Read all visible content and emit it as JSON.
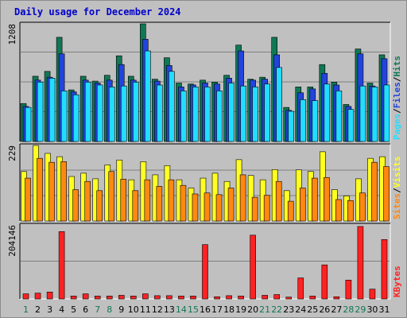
{
  "title": "Daily usage for December 2024",
  "colors": {
    "background": "#c0c0c0",
    "panel": "#c0c0c0",
    "hits": "#117755",
    "files": "#2244dd",
    "pages": "#22ddff",
    "visits": "#ffff22",
    "sites": "#ff8811",
    "kbytes": "#ff2222",
    "weekday": "#117755",
    "weekend": "#117755",
    "title": "#0000cc"
  },
  "chart_data": [
    {
      "type": "bar",
      "panel": "hits-files-pages",
      "ymax_label": "1208",
      "ylim": [
        0,
        1208
      ],
      "categories": [
        "1",
        "2",
        "3",
        "4",
        "5",
        "6",
        "7",
        "8",
        "9",
        "10",
        "11",
        "12",
        "13",
        "14",
        "15",
        "16",
        "17",
        "18",
        "19",
        "20",
        "21",
        "22",
        "23",
        "24",
        "25",
        "26",
        "27",
        "28",
        "29",
        "30",
        "31"
      ],
      "series": [
        {
          "name": "Hits",
          "values": [
            390,
            670,
            720,
            1070,
            530,
            670,
            620,
            680,
            880,
            670,
            1208,
            640,
            860,
            600,
            590,
            630,
            610,
            680,
            990,
            640,
            660,
            1070,
            350,
            560,
            560,
            790,
            610,
            380,
            950,
            600,
            890
          ]
        },
        {
          "name": "Files",
          "values": [
            360,
            630,
            660,
            900,
            510,
            630,
            600,
            630,
            790,
            630,
            1050,
            620,
            780,
            560,
            580,
            600,
            590,
            650,
            930,
            630,
            640,
            890,
            320,
            500,
            540,
            700,
            580,
            360,
            900,
            570,
            850
          ]
        },
        {
          "name": "Pages",
          "values": [
            350,
            610,
            650,
            520,
            480,
            610,
            580,
            560,
            570,
            610,
            930,
            580,
            720,
            520,
            560,
            560,
            520,
            600,
            570,
            560,
            590,
            760,
            310,
            430,
            420,
            590,
            520,
            330,
            570,
            560,
            580
          ]
        }
      ],
      "legend": [
        "Pages",
        "/",
        "Files",
        "/",
        "Hits"
      ],
      "legend_position": "right-vertical"
    },
    {
      "type": "bar",
      "panel": "sites-visits",
      "ymax_label": "229",
      "ylim": [
        0,
        229
      ],
      "categories": [
        "1",
        "2",
        "3",
        "4",
        "5",
        "6",
        "7",
        "8",
        "9",
        "10",
        "11",
        "12",
        "13",
        "14",
        "15",
        "16",
        "17",
        "18",
        "19",
        "20",
        "21",
        "22",
        "23",
        "24",
        "25",
        "26",
        "27",
        "28",
        "29",
        "30",
        "31"
      ],
      "series": [
        {
          "name": "Visits",
          "values": [
            150,
            229,
            205,
            195,
            135,
            145,
            128,
            170,
            185,
            125,
            180,
            140,
            168,
            125,
            100,
            130,
            145,
            120,
            186,
            138,
            125,
            156,
            92,
            155,
            150,
            210,
            95,
            76,
            128,
            190,
            195
          ]
        },
        {
          "name": "Sites",
          "values": [
            130,
            190,
            178,
            180,
            95,
            120,
            92,
            150,
            127,
            92,
            125,
            105,
            125,
            108,
            82,
            85,
            80,
            100,
            140,
            72,
            78,
            120,
            60,
            100,
            130,
            132,
            65,
            62,
            85,
            178,
            165
          ]
        }
      ],
      "legend": [
        "Sites",
        "/",
        "Visits"
      ],
      "legend_position": "right-vertical"
    },
    {
      "type": "bar",
      "panel": "kbytes",
      "ymax_label": "204146",
      "ylim": [
        0,
        204146
      ],
      "categories": [
        "1",
        "2",
        "3",
        "4",
        "5",
        "6",
        "7",
        "8",
        "9",
        "10",
        "11",
        "12",
        "13",
        "14",
        "15",
        "16",
        "17",
        "18",
        "19",
        "20",
        "21",
        "22",
        "23",
        "24",
        "25",
        "26",
        "27",
        "28",
        "29",
        "30",
        "31"
      ],
      "series": [
        {
          "name": "KBytes",
          "values": [
            14000,
            16000,
            19000,
            186000,
            8000,
            14000,
            8000,
            8000,
            10000,
            8000,
            14000,
            9000,
            9000,
            8000,
            8000,
            150000,
            6000,
            9000,
            8000,
            176000,
            10000,
            12000,
            5000,
            58000,
            8000,
            94000,
            6000,
            52000,
            200000,
            27000,
            164000
          ]
        }
      ],
      "legend": [
        "KBytes"
      ],
      "legend_position": "right-vertical"
    }
  ],
  "x_axis": {
    "days": [
      "1",
      "2",
      "3",
      "4",
      "5",
      "6",
      "7",
      "8",
      "9",
      "10",
      "11",
      "12",
      "13",
      "14",
      "15",
      "16",
      "17",
      "18",
      "19",
      "20",
      "21",
      "22",
      "23",
      "24",
      "25",
      "26",
      "27",
      "28",
      "29",
      "30",
      "31"
    ],
    "weekend_days": [
      "1",
      "7",
      "8",
      "14",
      "15",
      "21",
      "22",
      "28",
      "29"
    ]
  }
}
